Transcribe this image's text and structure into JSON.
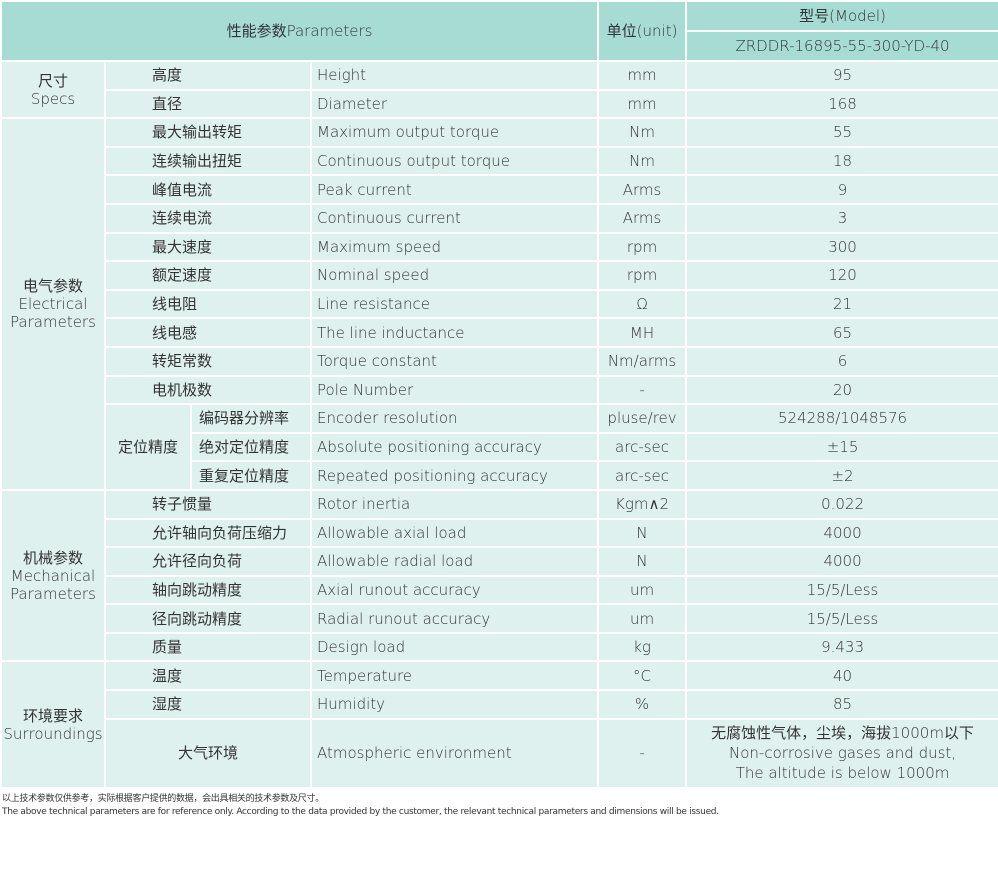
{
  "header": {
    "parameters": "性能参数Parameters",
    "unit": "单位(unit)",
    "model_label": "型号(Model)",
    "model": "ZRDDR-16895-55-300-YD-40"
  },
  "groups": [
    {
      "name_cn": "尺寸",
      "name_en": "Specs",
      "rows": [
        {
          "cn": "高度",
          "en": "Height",
          "unit": "mm",
          "value": "95"
        },
        {
          "cn": "直径",
          "en": "Diameter",
          "unit": "mm",
          "value": "168"
        }
      ]
    },
    {
      "name_cn": "电气参数",
      "name_en": "Electrical Parameters",
      "rows": [
        {
          "cn": "最大输出转矩",
          "en": "Maximum output torque",
          "unit": "Nm",
          "value": "55"
        },
        {
          "cn": "连续输出扭矩",
          "en": "Continuous output torque",
          "unit": "Nm",
          "value": "18"
        },
        {
          "cn": "峰值电流",
          "en": "Peak current",
          "unit": "Arms",
          "value": "9"
        },
        {
          "cn": "连续电流",
          "en": "Continuous current",
          "unit": "Arms",
          "value": "3"
        },
        {
          "cn": "最大速度",
          "en": "Maximum speed",
          "unit": "rpm",
          "value": "300"
        },
        {
          "cn": "额定速度",
          "en": "Nominal speed",
          "unit": "rpm",
          "value": "120"
        },
        {
          "cn": "线电阻",
          "en": "Line resistance",
          "unit": "Ω",
          "value": "21"
        },
        {
          "cn": "线电感",
          "en": "The line inductance",
          "unit": "MH",
          "value": "65"
        },
        {
          "cn": "转矩常数",
          "en": "Torque constant",
          "unit": "Nm/arms",
          "value": "6"
        },
        {
          "cn": "电机极数",
          "en": "Pole Number",
          "unit": "-",
          "value": "20"
        }
      ],
      "sub": {
        "name": "定位精度",
        "rows": [
          {
            "cn": "编码器分辨率",
            "en": "Encoder resolution",
            "unit": "pluse/rev",
            "value": "524288/1048576"
          },
          {
            "cn": "绝对定位精度",
            "en": "Absolute positioning accuracy",
            "unit": "arc-sec",
            "value": "±15"
          },
          {
            "cn": "重复定位精度",
            "en": "Repeated positioning accuracy",
            "unit": "arc-sec",
            "value": "±2"
          }
        ]
      }
    },
    {
      "name_cn": "机械参数",
      "name_en": "Mechanical Parameters",
      "rows": [
        {
          "cn": "转子惯量",
          "en": "Rotor inertia",
          "unit": "Kgm∧2",
          "value": "0.022"
        },
        {
          "cn": "允许轴向负荷压缩力",
          "en": "Allowable axial load",
          "unit": "N",
          "value": "4000"
        },
        {
          "cn": "允许径向负荷",
          "en": "Allowable radial load",
          "unit": "N",
          "value": "4000"
        },
        {
          "cn": "轴向跳动精度",
          "en": "Axial runout accuracy",
          "unit": "um",
          "value": "15/5/Less"
        },
        {
          "cn": "径向跳动精度",
          "en": "Radial runout accuracy",
          "unit": "um",
          "value": "15/5/Less"
        },
        {
          "cn": "质量",
          "en": "Design load",
          "unit": "kg",
          "value": "9.433"
        }
      ]
    },
    {
      "name_cn": "环境要求",
      "name_en": "Surroundings",
      "rows": [
        {
          "cn": "温度",
          "en": "Temperature",
          "unit": "°C",
          "value": "40"
        },
        {
          "cn": "湿度",
          "en": "Humidity",
          "unit": "%",
          "value": "85"
        },
        {
          "cn": "大气环境",
          "en": "Atmospheric environment",
          "unit": "-",
          "value": [
            "无腐蚀性气体，尘埃，海拔1000m以下",
            "Non-corrosive gases and dust,",
            "The altitude is below 1000m"
          ]
        }
      ]
    }
  ],
  "footnote": [
    "以上技术参数仅供参考，实际根据客户提供的数据，会出具相关的技术参数及尺寸。",
    "The above technical parameters are for reference only. According to the data provided by the customer, the relevant technical parameters and dimensions will be issued."
  ]
}
